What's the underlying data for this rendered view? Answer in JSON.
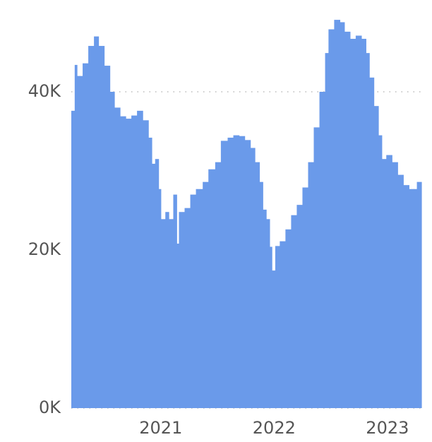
{
  "chart_data": {
    "type": "bar",
    "x": [
      2020.21,
      2020.24,
      2020.26,
      2020.31,
      2020.36,
      2020.41,
      2020.45,
      2020.5,
      2020.55,
      2020.59,
      2020.64,
      2020.69,
      2020.74,
      2020.79,
      2020.84,
      2020.89,
      2020.92,
      2020.95,
      2020.98,
      2021.0,
      2021.04,
      2021.07,
      2021.11,
      2021.14,
      2021.16,
      2021.21,
      2021.26,
      2021.31,
      2021.37,
      2021.42,
      2021.48,
      2021.53,
      2021.59,
      2021.64,
      2021.69,
      2021.74,
      2021.79,
      2021.83,
      2021.87,
      2021.9,
      2021.93,
      2021.96,
      2021.98,
      2022.01,
      2022.05,
      2022.1,
      2022.15,
      2022.2,
      2022.25,
      2022.3,
      2022.35,
      2022.4,
      2022.45,
      2022.48,
      2022.53,
      2022.58,
      2022.62,
      2022.67,
      2022.72,
      2022.77,
      2022.81,
      2022.84,
      2022.88,
      2022.92,
      2022.95,
      2022.99,
      2023.04,
      2023.09,
      2023.14,
      2023.19,
      2023.23,
      2023.26
    ],
    "values": [
      37600,
      43400,
      42000,
      43600,
      45800,
      47000,
      45800,
      43300,
      40000,
      38000,
      36900,
      36600,
      37000,
      37600,
      36400,
      34200,
      30900,
      31500,
      27700,
      23900,
      24800,
      23900,
      27000,
      20800,
      24800,
      25300,
      27000,
      27700,
      28600,
      30200,
      31100,
      33800,
      34200,
      34500,
      34400,
      33900,
      32900,
      31100,
      28600,
      25100,
      23900,
      20400,
      17400,
      20500,
      21100,
      22600,
      24400,
      25700,
      27900,
      31100,
      35500,
      40000,
      44900,
      47900,
      49100,
      48800,
      47600,
      46700,
      47100,
      46700,
      44900,
      41800,
      38200,
      34500,
      31500,
      32000,
      31100,
      29500,
      28200,
      27700,
      27700,
      28600
    ],
    "color": "#6a9aea",
    "xlim": [
      2020.21,
      2023.3
    ],
    "xticks": [
      2021,
      2022,
      2023
    ],
    "ylim": [
      0,
      50000
    ],
    "yticks": [
      {
        "value": 0,
        "label": "0K"
      },
      {
        "value": 20000,
        "label": "20K"
      },
      {
        "value": 40000,
        "label": "40K"
      }
    ],
    "grid": true
  }
}
